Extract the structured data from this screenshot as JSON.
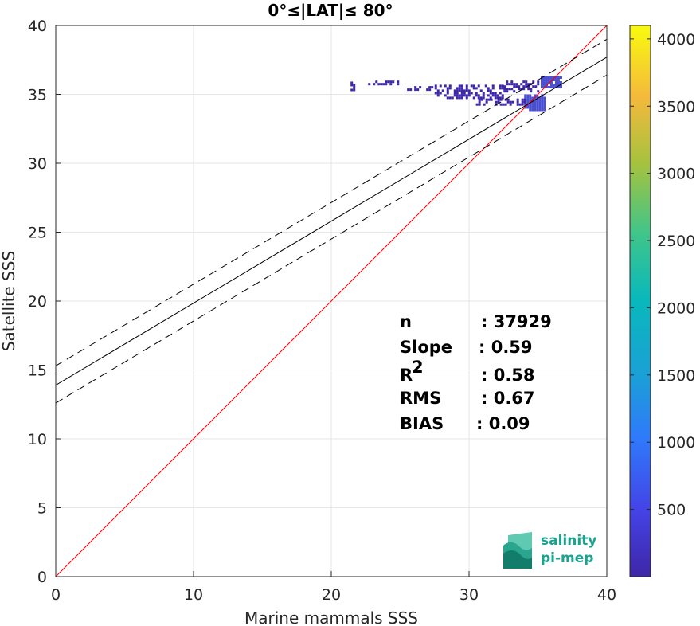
{
  "chart_data": {
    "type": "scatter",
    "title": "0°≤|LAT|≤ 80°",
    "xlabel": "Marine mammals SSS",
    "ylabel": "Satellite SSS",
    "xlim": [
      0,
      40
    ],
    "ylim": [
      0,
      40
    ],
    "xticks": [
      "0",
      "10",
      "20",
      "30",
      "40"
    ],
    "yticks": [
      "0",
      "5",
      "10",
      "15",
      "20",
      "25",
      "30",
      "35",
      "40"
    ],
    "grid": true,
    "lines": {
      "identity": {
        "x": [
          0,
          40
        ],
        "y": [
          0,
          40
        ],
        "color": "#ff0000"
      },
      "fit": {
        "x": [
          0,
          40
        ],
        "y": [
          13.9,
          37.7
        ],
        "color": "#000000",
        "style": "solid"
      },
      "fit_upper": {
        "x": [
          0,
          40
        ],
        "y": [
          15.3,
          39.0
        ],
        "color": "#000000",
        "style": "dashed"
      },
      "fit_lower": {
        "x": [
          0,
          40
        ],
        "y": [
          12.6,
          36.4
        ],
        "color": "#000000",
        "style": "dashed"
      }
    },
    "density_clusters": [
      {
        "x": [
          34.0,
          35.4
        ],
        "y": [
          33.8,
          35.0
        ],
        "level": "high"
      },
      {
        "x": [
          35.2,
          36.7
        ],
        "y": [
          35.5,
          36.3
        ],
        "level": "high"
      },
      {
        "x": [
          27.5,
          32.5
        ],
        "y": [
          34.8,
          35.7
        ],
        "level": "low"
      },
      {
        "x": [
          30.5,
          34.0
        ],
        "y": [
          34.2,
          34.7
        ],
        "level": "low"
      },
      {
        "x": [
          25.5,
          28.0
        ],
        "y": [
          35.3,
          35.6
        ],
        "level": "low"
      },
      {
        "x": [
          32.5,
          35.0
        ],
        "y": [
          35.2,
          36.0
        ],
        "level": "low"
      },
      {
        "x": [
          21.4,
          21.6
        ],
        "y": [
          35.1,
          36.1
        ],
        "level": "low"
      },
      {
        "x": [
          22.5,
          24.8
        ],
        "y": [
          35.7,
          36.0
        ],
        "level": "low"
      }
    ],
    "colorbar": {
      "min": 0,
      "max": 4100,
      "ticks": [
        "500",
        "1000",
        "1500",
        "2000",
        "2500",
        "3000",
        "3500",
        "4000"
      ],
      "colormap": "parula"
    },
    "stats": [
      {
        "label": "n",
        "value": ": 37929",
        "sup": ""
      },
      {
        "label": "Slope",
        "value": ": 0.59",
        "sup": ""
      },
      {
        "label": "R",
        "value": ": 0.58",
        "sup": "2"
      },
      {
        "label": "RMS",
        "value": ": 0.67",
        "sup": ""
      },
      {
        "label": "BIAS",
        "value": ": 0.09",
        "sup": ""
      }
    ]
  },
  "logo": {
    "line1": "salinity",
    "line2": "pi-mep"
  },
  "colors": {
    "identity_line": "#ff0000",
    "fit_line": "#000000",
    "low_density": "#3e26a8",
    "high_density": "#4a4fd0",
    "logo_teal": "#1aa38f"
  }
}
